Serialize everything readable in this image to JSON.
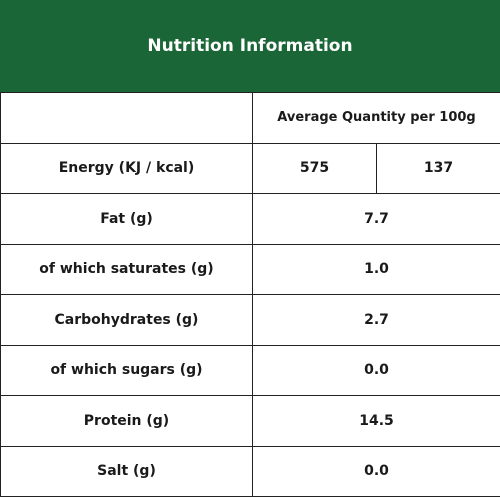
{
  "title": "Nutrition Information",
  "header": {
    "quantity_label": "Average Quantity per 100g"
  },
  "energy": {
    "label": "Energy (KJ / kcal)",
    "kj": "575",
    "kcal": "137"
  },
  "rows": [
    {
      "label": "Fat (g)",
      "value": "7.7"
    },
    {
      "label": "of which saturates (g)",
      "value": "1.0"
    },
    {
      "label": "Carbohydrates (g)",
      "value": "2.7"
    },
    {
      "label": "of which sugars (g)",
      "value": "0.0"
    },
    {
      "label": "Protein (g)",
      "value": "14.5"
    },
    {
      "label": "Salt (g)",
      "value": "0.0"
    }
  ],
  "colors": {
    "header_background": "#1a6637",
    "header_text": "#ffffff",
    "border": "#222222"
  }
}
